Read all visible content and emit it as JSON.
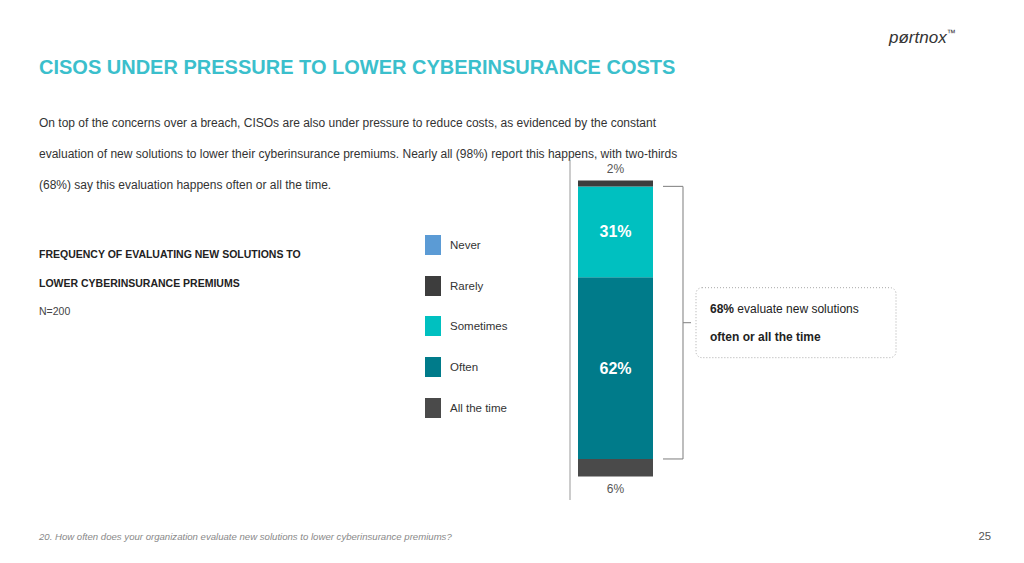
{
  "chart_data": {
    "type": "bar",
    "stacked": true,
    "title": "CISOS UNDER PRESSURE TO LOWER CYBERINSURANCE COSTS",
    "subtitle": [
      "On top of the concerns over a breach, CISOs are also under pressure to reduce costs, as evidenced by the constant",
      "evaluation of new solutions to lower their cyberinsurance premiums. Nearly all (98%) report this happens, with two-thirds",
      "(68%) say this evaluation happens often or all the time."
    ],
    "categories": [
      null
    ],
    "series": [
      {
        "name": "Never",
        "color": "#5B9BD5",
        "values": [
          0
        ]
      },
      {
        "name": "Rarely",
        "color": "#3D3D3D",
        "values": [
          2
        ],
        "value_labels": [
          "2%"
        ]
      },
      {
        "name": "Sometimes",
        "color": "#00C0C0",
        "values": [
          31
        ],
        "value_labels": [
          "31%"
        ]
      },
      {
        "name": "Often",
        "color": "#007B8A",
        "values": [
          62
        ],
        "value_labels": [
          "62%"
        ]
      },
      {
        "name": "All the time",
        "color": "#4A4A4A",
        "values": [
          6
        ],
        "value_labels": [
          "6%"
        ]
      }
    ],
    "ylim": [
      -8,
      108
    ],
    "tick_labels": false,
    "grid": false,
    "legend": "left",
    "data_labels": true,
    "annotations": [
      "FREQUENCY OF EVALUATING NEW SOLUTIONS TO",
      "LOWER CYBERINSURANCE PREMIUMS",
      "N=200",
      "68% evaluate new solutions",
      "often or all the time",
      "pørtnox",
      "™",
      "20. How often does your organization evaluate new solutions to lower cyberinsurance premiums?",
      "25"
    ]
  }
}
